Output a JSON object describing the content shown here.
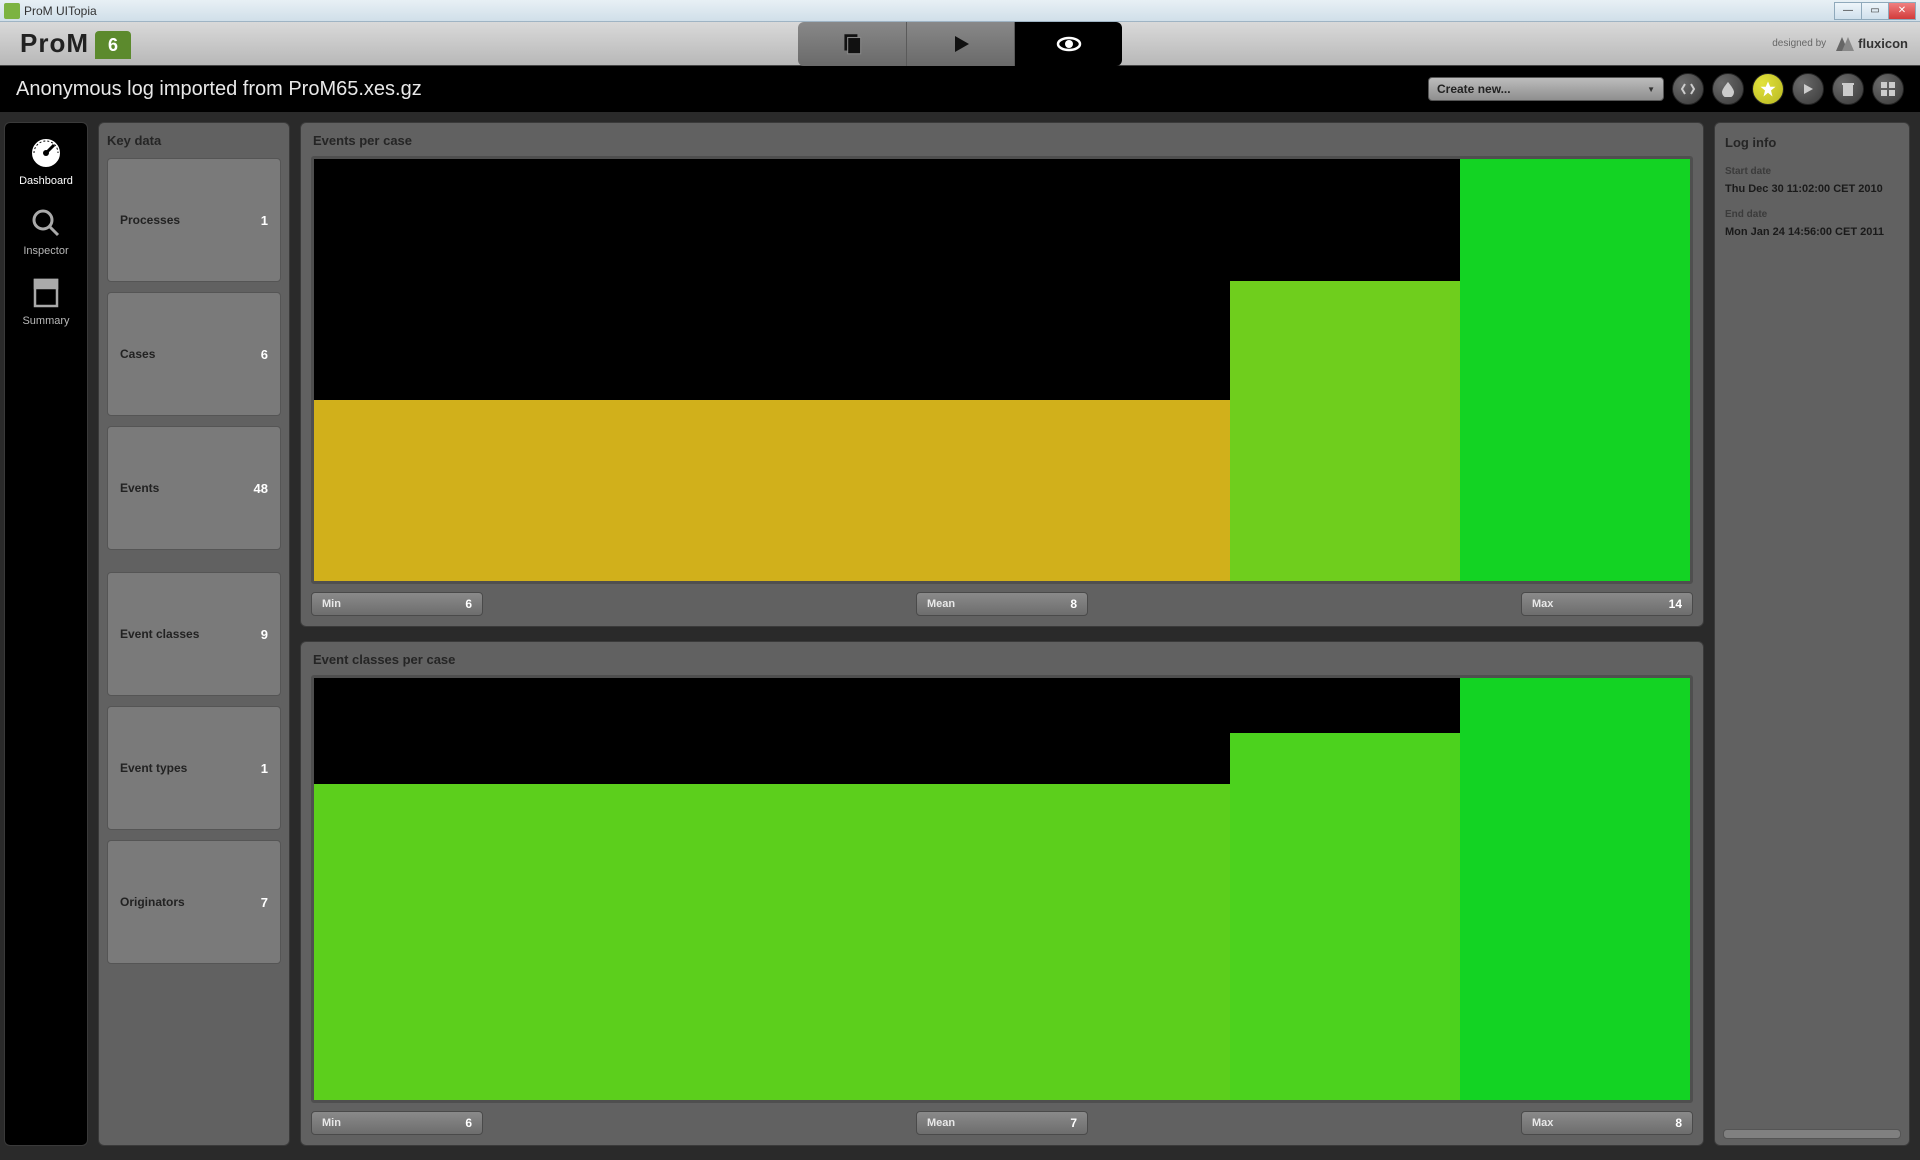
{
  "window": {
    "title": "ProM UITopia"
  },
  "logo": {
    "text": "ProM",
    "version": "6"
  },
  "topbar": {
    "designed_by": "designed by",
    "vendor": "fluxicon"
  },
  "dropdown": {
    "label": "Create new..."
  },
  "subbar": {
    "title": "Anonymous log imported from ProM65.xes.gz"
  },
  "nav": {
    "dashboard": "Dashboard",
    "inspector": "Inspector",
    "summary": "Summary"
  },
  "key": {
    "title": "Key data",
    "processes": {
      "name": "Processes",
      "value": "1"
    },
    "cases": {
      "name": "Cases",
      "value": "6"
    },
    "events": {
      "name": "Events",
      "value": "48"
    },
    "classes": {
      "name": "Event classes",
      "value": "9"
    },
    "types": {
      "name": "Event types",
      "value": "1"
    },
    "orig": {
      "name": "Originators",
      "value": "7"
    }
  },
  "chart1": {
    "title": "Events per case",
    "type": "bar",
    "background_color": "#000000",
    "border_color": "#4f4f4f",
    "bars": [
      {
        "width_pct": 66.6,
        "height_pct": 43,
        "color": "#d1b01b"
      },
      {
        "width_pct": 16.7,
        "height_pct": 71,
        "color": "#6fce1d"
      },
      {
        "width_pct": 16.7,
        "height_pct": 100,
        "color": "#13d323"
      }
    ],
    "stats": {
      "min": {
        "label": "Min",
        "value": "6"
      },
      "mean": {
        "label": "Mean",
        "value": "8"
      },
      "max": {
        "label": "Max",
        "value": "14"
      }
    }
  },
  "chart2": {
    "title": "Event classes per case",
    "type": "bar",
    "background_color": "#000000",
    "border_color": "#4f4f4f",
    "bars": [
      {
        "width_pct": 66.6,
        "height_pct": 75,
        "color": "#5ccf1c"
      },
      {
        "width_pct": 16.7,
        "height_pct": 87,
        "color": "#4cd21e"
      },
      {
        "width_pct": 16.7,
        "height_pct": 100,
        "color": "#13d323"
      }
    ],
    "stats": {
      "min": {
        "label": "Min",
        "value": "6"
      },
      "mean": {
        "label": "Mean",
        "value": "7"
      },
      "max": {
        "label": "Max",
        "value": "8"
      }
    }
  },
  "info": {
    "title": "Log info",
    "start_label": "Start date",
    "start_value": "Thu Dec 30 11:02:00 CET 2010",
    "end_label": "End date",
    "end_value": "Mon Jan 24 14:56:00 CET 2011"
  }
}
